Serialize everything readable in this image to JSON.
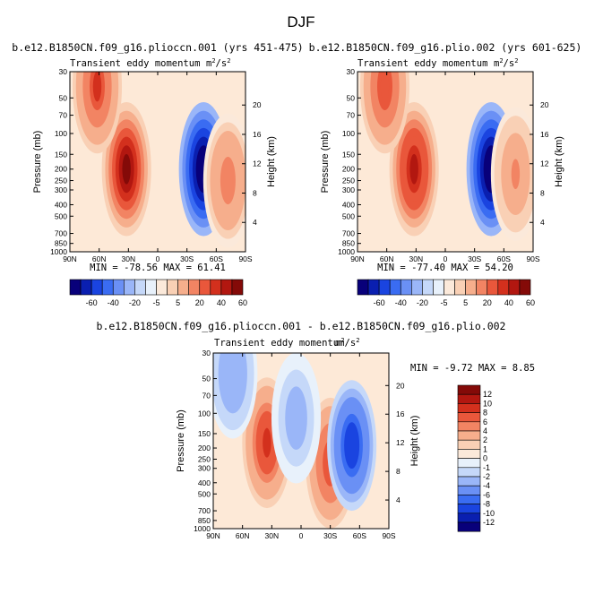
{
  "figure_title": "DJF",
  "panels": [
    {
      "title": "b.e12.B1850CN.f09_g16.plioccn.001 (yrs 451-475)",
      "subtitle": "Transient eddy momentum",
      "units_base": "m",
      "units_sup1": "2",
      "units_mid": "/s",
      "units_sup2": "2",
      "stats": "MIN = -78.56   MAX =  61.41"
    },
    {
      "title": "b.e12.B1850CN.f09_g16.plio.002 (yrs 601-625)",
      "subtitle": "Transient eddy momentum",
      "units_base": "m",
      "units_sup1": "2",
      "units_mid": "/s",
      "units_sup2": "2",
      "stats": "MIN = -77.40   MAX =  54.20"
    },
    {
      "title": "b.e12.B1850CN.f09_g16.plioccn.001 - b.e12.B1850CN.f09_g16.plio.002",
      "subtitle": "Transient eddy momentum",
      "units_base": "m",
      "units_sup1": "2",
      "units_mid": "/s",
      "units_sup2": "2",
      "stats": "MIN =   -9.72   MAX =    8.85"
    }
  ],
  "colors": {
    "palette": [
      "#08007a",
      "#0a1fb0",
      "#1a44e0",
      "#3a6cf2",
      "#6a90f5",
      "#9ab6f8",
      "#c5d8f9",
      "#e8f1fb",
      "#fbe9da",
      "#f9d0b5",
      "#f6ae8c",
      "#f28463",
      "#e9573b",
      "#d3301d",
      "#b21710",
      "#840a08"
    ],
    "contour_background": "#fde9d7"
  },
  "chart_data": [
    {
      "type": "contour",
      "xlabel": "",
      "ylabel": "Pressure (mb)",
      "right_label": "Height (km)",
      "x_ticks": [
        "90N",
        "60N",
        "30N",
        "0",
        "30S",
        "60S",
        "90S"
      ],
      "y_ticks": [
        "30",
        "50",
        "70",
        "100",
        "150",
        "200",
        "250",
        "300",
        "400",
        "500",
        "700",
        "850",
        "1000"
      ],
      "right_ticks": [
        "20",
        "16",
        "12",
        "8",
        "4"
      ],
      "colorbar_labels": [
        "-60",
        "-40",
        "-20",
        "-5",
        "5",
        "20",
        "40",
        "60"
      ],
      "colorbar_levels": [
        -70,
        -60,
        -50,
        -40,
        -30,
        -20,
        -10,
        -5,
        0,
        5,
        10,
        20,
        30,
        40,
        50,
        60,
        70
      ],
      "xlim": [
        -90,
        90
      ],
      "ylim": [
        1000,
        30
      ],
      "min": -78.56,
      "max": 61.41,
      "features": [
        {
          "lat": 32,
          "p": 200,
          "value": 61.4,
          "sign": "positive"
        },
        {
          "lat": 62,
          "p": 40,
          "value": 40,
          "sign": "positive"
        },
        {
          "lat": -47,
          "p": 200,
          "value": -78.56,
          "sign": "negative"
        },
        {
          "lat": -72,
          "p": 250,
          "value": 25,
          "sign": "positive"
        }
      ]
    },
    {
      "type": "contour",
      "xlabel": "",
      "ylabel": "Pressure (mb)",
      "right_label": "Height (km)",
      "x_ticks": [
        "90N",
        "60N",
        "30N",
        "0",
        "30S",
        "60S",
        "90S"
      ],
      "y_ticks": [
        "30",
        "50",
        "70",
        "100",
        "150",
        "200",
        "250",
        "300",
        "400",
        "500",
        "700",
        "850",
        "1000"
      ],
      "right_ticks": [
        "20",
        "16",
        "12",
        "8",
        "4"
      ],
      "colorbar_labels": [
        "-60",
        "-40",
        "-20",
        "-5",
        "5",
        "20",
        "40",
        "60"
      ],
      "colorbar_levels": [
        -70,
        -60,
        -50,
        -40,
        -30,
        -20,
        -10,
        -5,
        0,
        5,
        10,
        20,
        30,
        40,
        50,
        60,
        70
      ],
      "xlim": [
        -90,
        90
      ],
      "ylim": [
        1000,
        30
      ],
      "min": -77.4,
      "max": 54.2,
      "features": [
        {
          "lat": 32,
          "p": 200,
          "value": 54.2,
          "sign": "positive"
        },
        {
          "lat": 62,
          "p": 40,
          "value": 38,
          "sign": "positive"
        },
        {
          "lat": -47,
          "p": 200,
          "value": -77.4,
          "sign": "negative"
        },
        {
          "lat": -72,
          "p": 220,
          "value": 22,
          "sign": "positive"
        }
      ]
    },
    {
      "type": "contour",
      "xlabel": "",
      "ylabel": "Pressure (mb)",
      "right_label": "Height (km)",
      "x_ticks": [
        "90N",
        "60N",
        "30N",
        "0",
        "30S",
        "60S",
        "90S"
      ],
      "y_ticks": [
        "30",
        "50",
        "70",
        "100",
        "150",
        "200",
        "250",
        "300",
        "400",
        "500",
        "700",
        "850",
        "1000"
      ],
      "right_ticks": [
        "20",
        "16",
        "12",
        "8",
        "4"
      ],
      "colorbar_labels": [
        "12",
        "10",
        "8",
        "6",
        "4",
        "2",
        "1",
        "0",
        "-1",
        "-2",
        "-4",
        "-6",
        "-8",
        "-10",
        "-12"
      ],
      "colorbar_levels": [
        14,
        12,
        10,
        8,
        6,
        4,
        2,
        1,
        0,
        -1,
        -2,
        -4,
        -6,
        -8,
        -10,
        -12,
        -14
      ],
      "xlim": [
        -90,
        90
      ],
      "ylim": [
        1000,
        30
      ],
      "min": -9.72,
      "max": 8.85,
      "features": [
        {
          "lat": 35,
          "p": 180,
          "value": 8.85,
          "sign": "positive"
        },
        {
          "lat": -30,
          "p": 270,
          "value": 7,
          "sign": "positive"
        },
        {
          "lat": -52,
          "p": 190,
          "value": -9.72,
          "sign": "negative"
        },
        {
          "lat": 70,
          "p": 45,
          "value": -4,
          "sign": "negative"
        },
        {
          "lat": 5,
          "p": 110,
          "value": -3,
          "sign": "negative"
        }
      ]
    }
  ]
}
